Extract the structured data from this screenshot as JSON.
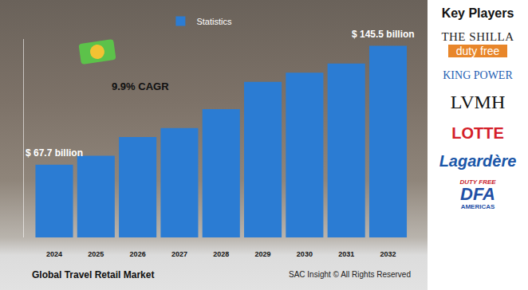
{
  "chart_data": {
    "type": "bar",
    "title": "Global Travel Retail Market",
    "categories": [
      "2024",
      "2025",
      "2026",
      "2027",
      "2028",
      "2029",
      "2030",
      "2031",
      "2032"
    ],
    "series": [
      {
        "name": "Statistics",
        "color": "#2b7cd3",
        "values": [
          67.7,
          73.5,
          85.8,
          91.7,
          104,
          122,
          128,
          134,
          145.5
        ]
      }
    ],
    "ylim": [
      20,
      150
    ],
    "yticks": [],
    "tick_labels": "x",
    "grid": false,
    "legend": "top",
    "annotations": [
      {
        "text": "$ 67.7 billion",
        "category": "2024"
      },
      {
        "text": "$ 145.5 billion",
        "category": "2032"
      },
      {
        "text": "9.9% CAGR"
      }
    ]
  },
  "credit": "SAC Insight © All Rights Reserved",
  "key_players": {
    "title": "Key Players",
    "logos": [
      {
        "lines": [
          "THE SHILLA",
          "duty free"
        ]
      },
      {
        "lines": [
          "KING POWER"
        ]
      },
      {
        "lines": [
          "LVMH"
        ]
      },
      {
        "lines": [
          "LOTTE"
        ]
      },
      {
        "lines": [
          "Lagardère"
        ]
      },
      {
        "lines": [
          "DUTY FREE",
          "DFA",
          "AMERICAS"
        ]
      }
    ]
  }
}
